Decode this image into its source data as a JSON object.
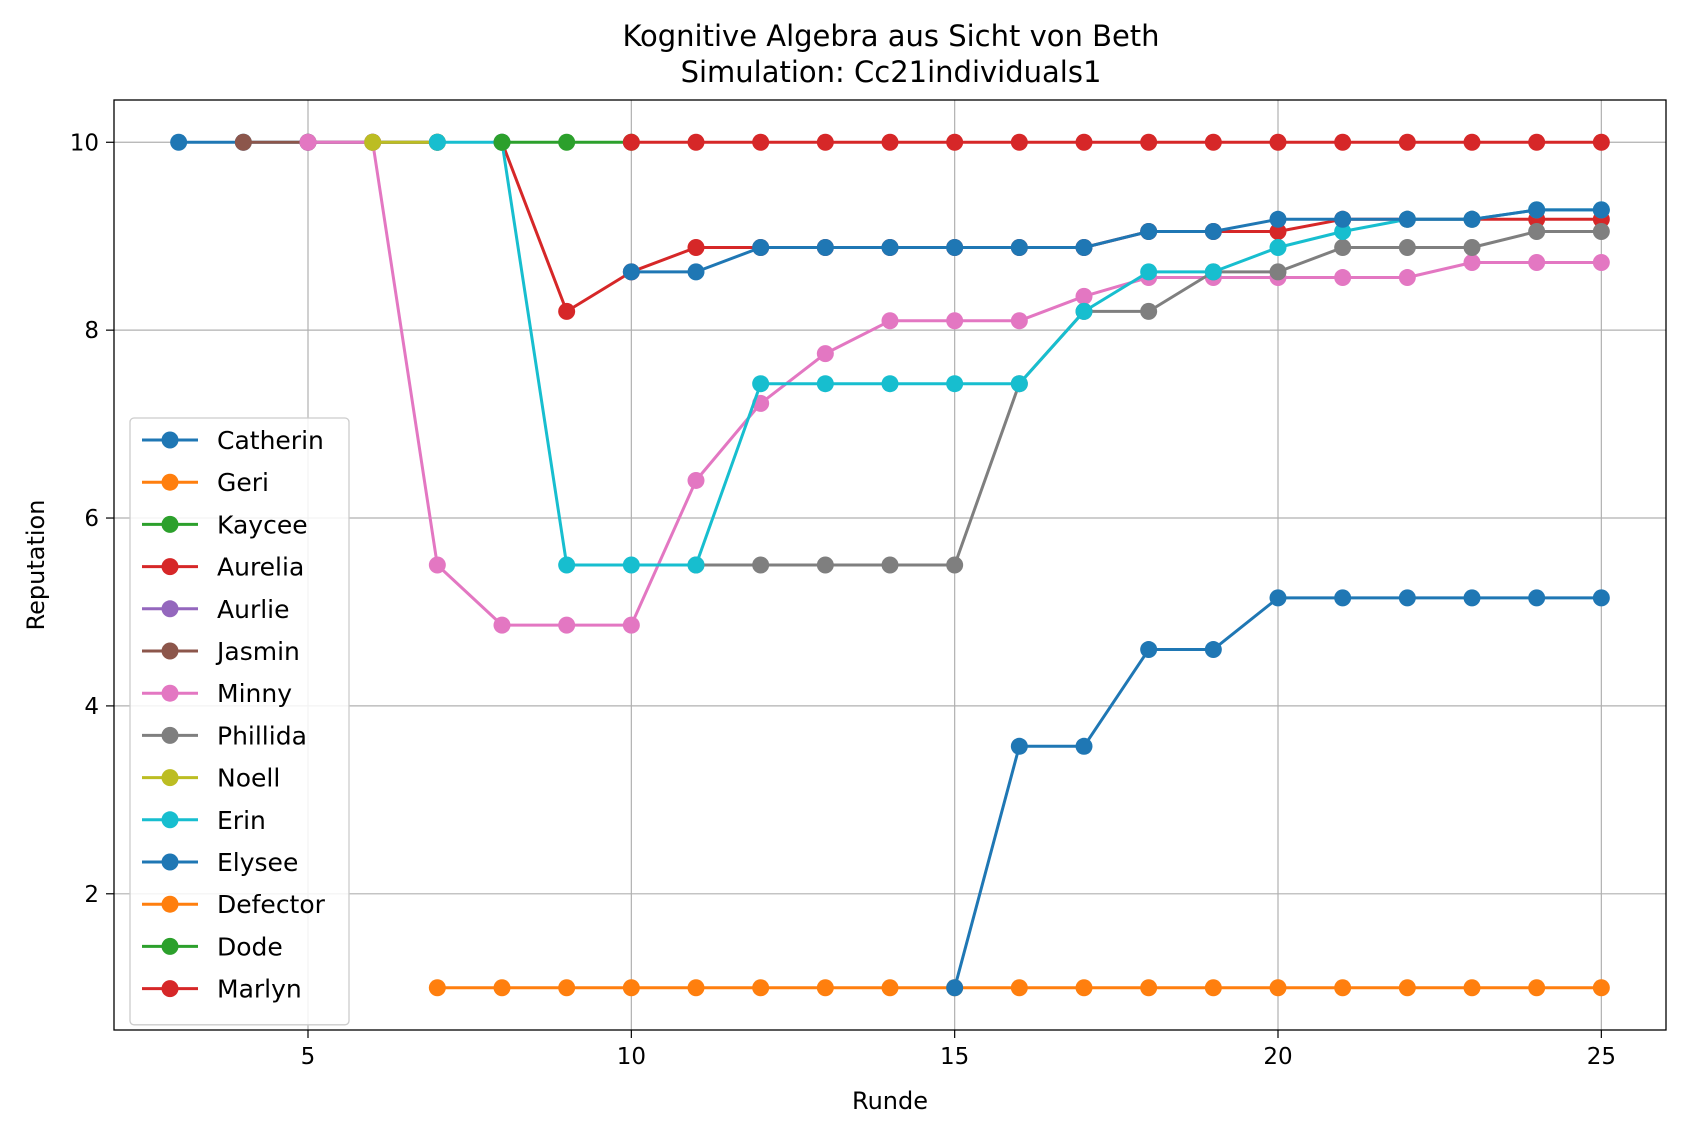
{
  "chart_data": {
    "type": "line",
    "title": "Kognitive Algebra aus Sicht von Beth",
    "subtitle": "Simulation: Cc21individuals1",
    "xlabel": "Runde",
    "ylabel": "Reputation",
    "xlim": [
      2,
      26
    ],
    "ylim": [
      0.55,
      10.45
    ],
    "xticks": [
      5,
      10,
      15,
      20,
      25
    ],
    "yticks": [
      2,
      4,
      6,
      8,
      10
    ],
    "grid": true,
    "legend_position": "lower-left",
    "series": [
      {
        "name": "Catherin",
        "color": "#1f77b4",
        "x": [
          3,
          4,
          5,
          6,
          7
        ],
        "y": [
          10,
          10,
          10,
          10,
          10
        ]
      },
      {
        "name": "Geri",
        "color": "#ff7f0e",
        "x": [],
        "y": []
      },
      {
        "name": "Kaycee",
        "color": "#2ca02c",
        "x": [],
        "y": []
      },
      {
        "name": "Aurelia",
        "color": "#d62728",
        "x": [
          8,
          9,
          10,
          11,
          12,
          13,
          14,
          15,
          16,
          17,
          18,
          19,
          20,
          21,
          22,
          23,
          24,
          25
        ],
        "y": [
          10,
          8.2,
          8.62,
          8.88,
          8.88,
          8.88,
          8.88,
          8.88,
          8.88,
          8.88,
          9.05,
          9.05,
          9.05,
          9.18,
          9.18,
          9.18,
          9.18,
          9.18
        ]
      },
      {
        "name": "Aurlie",
        "color": "#9467bd",
        "x": [],
        "y": []
      },
      {
        "name": "Jasmin",
        "color": "#8c564b",
        "x": [
          4,
          5,
          6,
          7
        ],
        "y": [
          10,
          10,
          10,
          10
        ]
      },
      {
        "name": "Minny",
        "color": "#e377c2",
        "x": [
          5,
          6,
          7,
          8,
          9,
          10,
          11,
          12,
          13,
          14,
          15,
          16,
          17,
          18,
          19,
          20,
          21,
          22,
          23,
          24,
          25
        ],
        "y": [
          10,
          10,
          5.5,
          4.86,
          4.86,
          4.86,
          6.4,
          7.22,
          7.75,
          8.1,
          8.1,
          8.1,
          8.36,
          8.56,
          8.56,
          8.56,
          8.56,
          8.56,
          8.72,
          8.72,
          8.72
        ]
      },
      {
        "name": "Phillida",
        "color": "#7f7f7f",
        "x": [
          11,
          12,
          13,
          14,
          15,
          16,
          17,
          18,
          19,
          20,
          21,
          22,
          23,
          24,
          25
        ],
        "y": [
          5.5,
          5.5,
          5.5,
          5.5,
          5.5,
          7.43,
          8.2,
          8.2,
          8.62,
          8.62,
          8.88,
          8.88,
          8.88,
          9.05,
          9.05
        ]
      },
      {
        "name": "Noell",
        "color": "#bcbd22",
        "x": [
          6,
          7
        ],
        "y": [
          10,
          10
        ]
      },
      {
        "name": "Erin",
        "color": "#17becf",
        "x": [
          7,
          8,
          9,
          10,
          11,
          12,
          13,
          14,
          15,
          16,
          17,
          18,
          19,
          20,
          21,
          22,
          23,
          24,
          25
        ],
        "y": [
          10,
          10,
          5.5,
          5.5,
          5.5,
          7.43,
          7.43,
          7.43,
          7.43,
          7.43,
          8.2,
          8.62,
          8.62,
          8.88,
          9.05,
          9.18,
          9.18,
          9.28,
          9.28
        ]
      },
      {
        "name": "Elysee",
        "color": "#1f77b4",
        "x": [
          10,
          11,
          12,
          13,
          14,
          15,
          16,
          17,
          18,
          19,
          20,
          21,
          22,
          23,
          24,
          25
        ],
        "y": [
          8.62,
          8.62,
          8.88,
          8.88,
          8.88,
          8.88,
          8.88,
          8.88,
          9.05,
          9.05,
          9.18,
          9.18,
          9.18,
          9.18,
          9.28,
          9.28
        ]
      },
      {
        "name": "Defector",
        "color": "#ff7f0e",
        "x": [
          7,
          8,
          9,
          10,
          11,
          12,
          13,
          14,
          15,
          16,
          17,
          18,
          19,
          20,
          21,
          22,
          23,
          24,
          25
        ],
        "y": [
          1,
          1,
          1,
          1,
          1,
          1,
          1,
          1,
          1,
          1,
          1,
          1,
          1,
          1,
          1,
          1,
          1,
          1,
          1
        ]
      },
      {
        "name": "Dode",
        "color": "#2ca02c",
        "x": [
          8,
          9,
          10
        ],
        "y": [
          10,
          10,
          10
        ]
      },
      {
        "name": "Marlyn",
        "color": "#d62728",
        "x": [
          10,
          11,
          12,
          13,
          14,
          15,
          16,
          17,
          18,
          19,
          20,
          21,
          22,
          23,
          24,
          25
        ],
        "y": [
          10,
          10,
          10,
          10,
          10,
          10,
          10,
          10,
          10,
          10,
          10,
          10,
          10,
          10,
          10,
          10
        ]
      },
      {
        "name": "",
        "color": "#1f77b4",
        "x": [
          15,
          16,
          17,
          18,
          19,
          20,
          21,
          22,
          23,
          24,
          25
        ],
        "y": [
          1,
          3.57,
          3.57,
          4.6,
          4.6,
          5.15,
          5.15,
          5.15,
          5.15,
          5.15,
          5.15
        ]
      }
    ]
  }
}
